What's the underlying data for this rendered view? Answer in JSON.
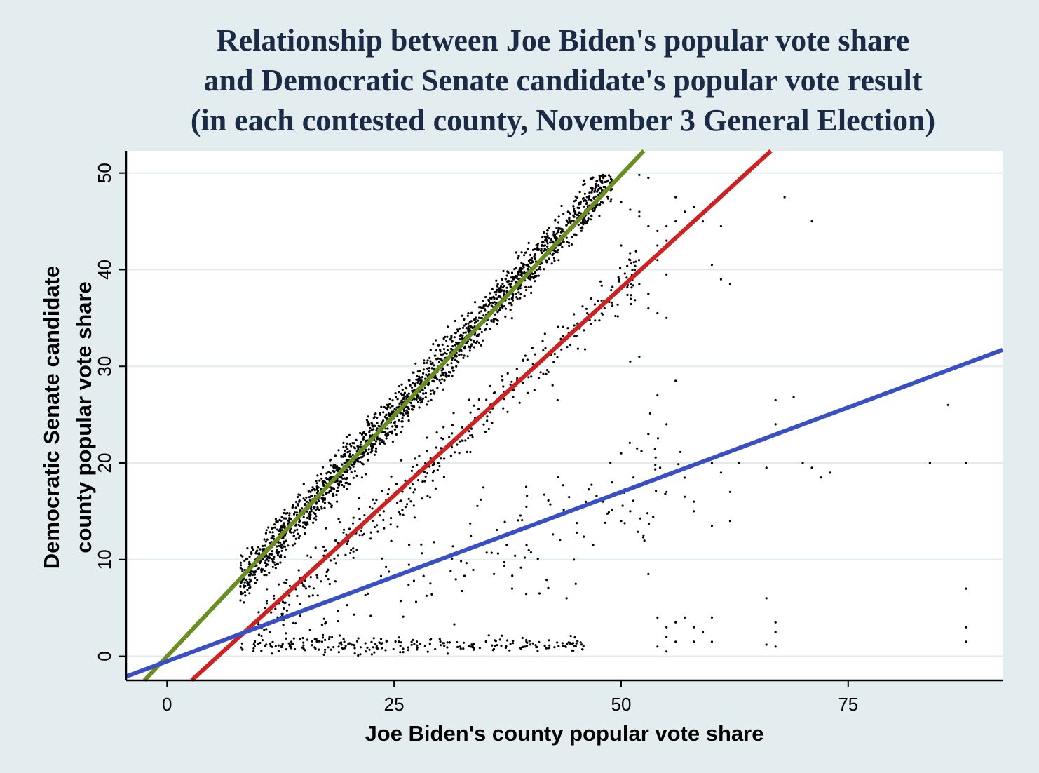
{
  "chart_data": {
    "type": "scatter",
    "title": [
      "Relationship between Joe Biden's popular vote share",
      "and Democratic Senate candidate's popular vote result",
      "(in each contested county, November 3 General Election)"
    ],
    "xlabel": "Joe Biden's county popular vote share",
    "ylabel": [
      "Democratic Senate candidate",
      "county popular vote share"
    ],
    "xlim": [
      -4.5,
      92
    ],
    "ylim": [
      -2.5,
      52.3
    ],
    "x_ticks": [
      0,
      25,
      50,
      75
    ],
    "y_ticks": [
      0,
      10,
      20,
      30,
      40,
      50
    ],
    "grid": "horizontal",
    "legend": "none",
    "fit_lines": [
      {
        "color": "#6b8e23",
        "points": [
          [
            -2.5,
            -2.5
          ],
          [
            52.5,
            52.3
          ]
        ]
      },
      {
        "color": "#cc2222",
        "points": [
          [
            2.7,
            -2.5
          ],
          [
            66.5,
            52.3
          ]
        ]
      },
      {
        "color": "#3a4fc4",
        "points": [
          [
            -4.5,
            -2.1
          ],
          [
            92,
            31.7
          ]
        ]
      }
    ],
    "clusters": [
      {
        "x_range": [
          8,
          49
        ],
        "slope": 1.02,
        "intercept": -0.5,
        "spread": 2.0,
        "count": 1900
      },
      {
        "x_range": [
          10,
          52
        ],
        "slope": 0.87,
        "intercept": -5.5,
        "spread": 2.5,
        "count": 380
      },
      {
        "x_range": [
          12,
          58
        ],
        "slope": 0.4,
        "intercept": -3.0,
        "spread": 5.0,
        "count": 150
      },
      {
        "x_range": [
          8,
          46
        ],
        "slope": 0,
        "intercept": 1.2,
        "spread": 0.7,
        "count": 230
      }
    ],
    "points": [
      [
        43,
        26.5
      ],
      [
        53,
        23
      ],
      [
        50,
        21
      ],
      [
        55,
        24
      ],
      [
        55,
        17
      ],
      [
        57,
        16.5
      ],
      [
        58,
        16
      ],
      [
        60,
        20
      ],
      [
        61,
        19
      ],
      [
        63,
        20
      ],
      [
        62,
        17
      ],
      [
        67,
        24
      ],
      [
        66,
        19.5
      ],
      [
        70,
        20
      ],
      [
        71,
        19.5
      ],
      [
        73,
        19
      ],
      [
        72,
        18.5
      ],
      [
        84,
        20
      ],
      [
        88,
        20
      ],
      [
        67,
        26.5
      ],
      [
        69,
        26.8
      ],
      [
        86,
        26
      ],
      [
        68,
        47.5
      ],
      [
        71,
        45
      ],
      [
        56,
        28.5
      ],
      [
        54,
        27
      ],
      [
        52,
        31
      ],
      [
        51,
        30.5
      ],
      [
        54,
        35.5
      ],
      [
        55,
        35
      ],
      [
        53,
        36
      ],
      [
        62,
        14
      ],
      [
        60,
        13.5
      ],
      [
        58,
        15
      ],
      [
        66,
        6
      ],
      [
        88,
        7
      ],
      [
        88,
        3
      ],
      [
        88,
        1.5
      ],
      [
        67,
        3.5
      ],
      [
        67,
        2.5
      ],
      [
        67,
        1
      ],
      [
        66,
        1.2
      ],
      [
        60,
        4
      ],
      [
        60,
        1.5
      ],
      [
        58,
        3
      ],
      [
        57,
        4
      ],
      [
        54,
        4
      ],
      [
        55,
        3
      ],
      [
        55,
        2
      ],
      [
        54,
        1
      ],
      [
        55,
        0.5
      ],
      [
        56,
        1.5
      ],
      [
        56,
        3.5
      ],
      [
        58,
        1.5
      ],
      [
        59,
        2.5
      ],
      [
        53,
        8.5
      ],
      [
        41,
        6.5
      ],
      [
        44,
        6
      ],
      [
        45,
        7.5
      ],
      [
        38,
        7
      ],
      [
        36,
        8.5
      ],
      [
        49,
        18
      ],
      [
        48,
        16
      ],
      [
        51,
        15
      ],
      [
        50,
        14
      ],
      [
        47,
        16
      ],
      [
        50,
        42.5
      ],
      [
        51,
        41
      ],
      [
        52,
        40
      ],
      [
        53,
        44.5
      ],
      [
        54,
        42.5
      ],
      [
        54,
        44
      ],
      [
        55,
        44.5
      ],
      [
        55,
        43
      ],
      [
        56,
        45
      ],
      [
        57,
        46
      ],
      [
        58,
        46.5
      ],
      [
        59,
        45
      ],
      [
        61,
        44.5
      ],
      [
        60,
        40.5
      ],
      [
        62,
        38.5
      ],
      [
        61,
        39
      ],
      [
        52,
        38.5
      ],
      [
        53,
        37.5
      ],
      [
        54,
        41
      ],
      [
        55,
        39.5
      ],
      [
        56,
        47.5
      ],
      [
        52,
        49.8
      ],
      [
        53,
        49.5
      ],
      [
        50,
        47
      ],
      [
        51,
        46.2
      ],
      [
        52,
        46
      ],
      [
        52,
        45.5
      ]
    ]
  }
}
